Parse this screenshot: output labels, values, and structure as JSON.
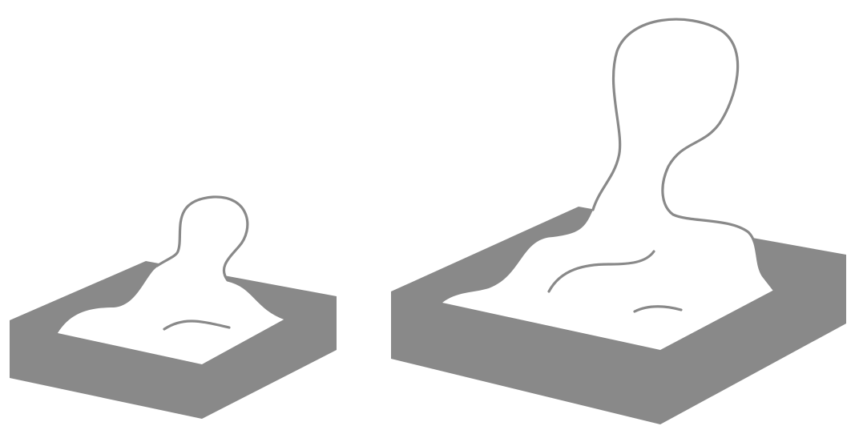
{
  "figure": {
    "background_color": "#ffffff",
    "box_color": "#898989",
    "surface_color": "#ffffff",
    "outline_color": "#898989",
    "panels": [
      {
        "id": "small-bump",
        "box_count": 1,
        "bump_count": 1,
        "surface_line_count": 1
      },
      {
        "id": "large-bump",
        "box_count": 1,
        "bump_count": 1,
        "surface_line_count": 2
      }
    ]
  }
}
